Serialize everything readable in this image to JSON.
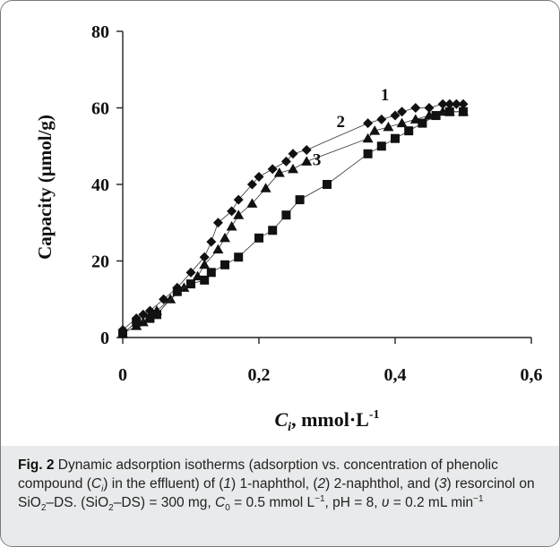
{
  "chart_data": {
    "type": "scatter",
    "ylabel": "Capacity (μmol/g)",
    "xlabel_var": "C",
    "xlabel_sub": "i",
    "xlabel_rest": ", mmol·L",
    "xlabel_sup": "-1",
    "xlim": [
      0,
      0.6
    ],
    "ylim": [
      0,
      80
    ],
    "x_ticks": [
      "0",
      "0,2",
      "0,4",
      "0,6"
    ],
    "y_ticks": [
      "0",
      "20",
      "40",
      "60",
      "80"
    ],
    "grid": false,
    "series": [
      {
        "name": "1",
        "marker": "diamond",
        "points": [
          [
            0.0,
            2
          ],
          [
            0.02,
            5
          ],
          [
            0.03,
            6
          ],
          [
            0.04,
            7
          ],
          [
            0.06,
            10
          ],
          [
            0.08,
            13
          ],
          [
            0.1,
            17
          ],
          [
            0.12,
            21
          ],
          [
            0.13,
            25
          ],
          [
            0.14,
            30
          ],
          [
            0.16,
            33
          ],
          [
            0.17,
            36
          ],
          [
            0.19,
            40
          ],
          [
            0.2,
            42
          ],
          [
            0.22,
            44
          ],
          [
            0.24,
            46
          ],
          [
            0.25,
            48
          ],
          [
            0.27,
            49
          ],
          [
            0.36,
            56
          ],
          [
            0.38,
            57
          ],
          [
            0.4,
            58
          ],
          [
            0.41,
            59
          ],
          [
            0.43,
            60
          ],
          [
            0.45,
            60
          ],
          [
            0.47,
            61
          ],
          [
            0.48,
            61
          ],
          [
            0.49,
            61
          ],
          [
            0.5,
            61
          ]
        ]
      },
      {
        "name": "2",
        "marker": "triangle",
        "points": [
          [
            0.0,
            1
          ],
          [
            0.02,
            3
          ],
          [
            0.03,
            4
          ],
          [
            0.05,
            7
          ],
          [
            0.07,
            10
          ],
          [
            0.09,
            13
          ],
          [
            0.11,
            16
          ],
          [
            0.12,
            19
          ],
          [
            0.14,
            23
          ],
          [
            0.15,
            26
          ],
          [
            0.16,
            29
          ],
          [
            0.17,
            32
          ],
          [
            0.19,
            35
          ],
          [
            0.21,
            39
          ],
          [
            0.23,
            43
          ],
          [
            0.25,
            44
          ],
          [
            0.27,
            46
          ],
          [
            0.36,
            52
          ],
          [
            0.37,
            54
          ],
          [
            0.39,
            55
          ],
          [
            0.41,
            56
          ],
          [
            0.43,
            57
          ],
          [
            0.45,
            58
          ],
          [
            0.47,
            59
          ],
          [
            0.48,
            59
          ],
          [
            0.5,
            59
          ]
        ]
      },
      {
        "name": "3",
        "marker": "square",
        "points": [
          [
            0.0,
            1
          ],
          [
            0.02,
            4
          ],
          [
            0.04,
            5
          ],
          [
            0.05,
            6
          ],
          [
            0.08,
            12
          ],
          [
            0.1,
            14
          ],
          [
            0.12,
            15
          ],
          [
            0.13,
            17
          ],
          [
            0.15,
            19
          ],
          [
            0.17,
            21
          ],
          [
            0.2,
            26
          ],
          [
            0.22,
            28
          ],
          [
            0.24,
            32
          ],
          [
            0.26,
            36
          ],
          [
            0.3,
            40
          ],
          [
            0.36,
            48
          ],
          [
            0.38,
            50
          ],
          [
            0.4,
            52
          ],
          [
            0.42,
            54
          ],
          [
            0.44,
            56
          ],
          [
            0.46,
            58
          ],
          [
            0.48,
            59
          ],
          [
            0.5,
            59
          ]
        ]
      }
    ],
    "curve_labels": [
      {
        "text": "1",
        "x": 0.385,
        "y": 62
      },
      {
        "text": "2",
        "x": 0.32,
        "y": 55
      },
      {
        "text": "3",
        "x": 0.285,
        "y": 45
      }
    ]
  },
  "caption": {
    "fig_label": "Fig. 2",
    "parts": [
      {
        "t": " Dynamic adsorption isotherms (adsorption vs. concentration of phenolic compound ("
      },
      {
        "t": "C",
        "i": true
      },
      {
        "t": "i",
        "sub": true,
        "i": true
      },
      {
        "t": ") in the effluent) of ("
      },
      {
        "t": "1",
        "i": true
      },
      {
        "t": ") 1-naphthol, ("
      },
      {
        "t": "2",
        "i": true
      },
      {
        "t": ") 2-naphthol, and ("
      },
      {
        "t": "3",
        "i": true
      },
      {
        "t": ") resorcinol on SiO"
      },
      {
        "t": "2",
        "sub": true
      },
      {
        "t": "–DS. (SiO"
      },
      {
        "t": "2",
        "sub": true
      },
      {
        "t": "–DS) = 300 mg, "
      },
      {
        "t": "C",
        "i": true
      },
      {
        "t": "0",
        "sub": true
      },
      {
        "t": " = 0.5 mmol L"
      },
      {
        "t": "−1",
        "sup": true
      },
      {
        "t": ", pH = 8, "
      },
      {
        "t": "υ",
        "i": true
      },
      {
        "t": " = 0.2 mL min"
      },
      {
        "t": "−1",
        "sup": true
      }
    ]
  }
}
